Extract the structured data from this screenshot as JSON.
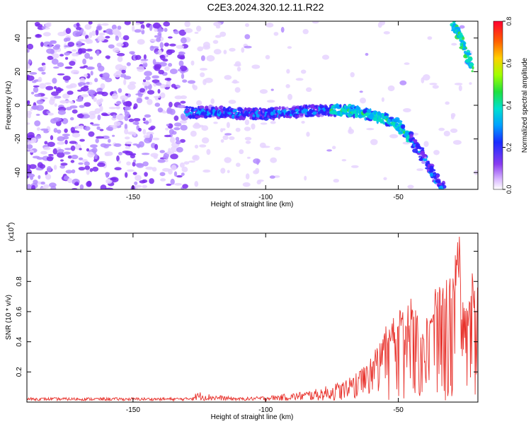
{
  "title": "C2E3.2024.320.12.11.R22",
  "chart_data": [
    {
      "type": "heatmap",
      "xlabel": "Height of straight line (km)",
      "ylabel": "Frequency (Hz)",
      "xlim": [
        -190,
        -20
      ],
      "ylim": [
        -50,
        50
      ],
      "xticks": [
        -150,
        -100,
        -50
      ],
      "xtick_labels": [
        "-150",
        "-100",
        "-50"
      ],
      "yticks": [
        -40,
        -20,
        0,
        20,
        40
      ],
      "ytick_labels": [
        "-40",
        "-20",
        "0",
        "20",
        "40"
      ],
      "colorbar": {
        "label": "Normalized spectral amplitude",
        "range": [
          0,
          0.8
        ],
        "ticks": [
          0,
          0.2,
          0.4,
          0.6,
          0.8
        ],
        "tick_labels": [
          "0.0",
          "0.2",
          "0.4",
          "0.6",
          "0.8"
        ]
      },
      "signal_track": {
        "x": [
          -130,
          -120,
          -110,
          -100,
          -90,
          -80,
          -70,
          -65,
          -60,
          -55,
          -50,
          -45,
          -40,
          -36,
          -33
        ],
        "y": [
          -4,
          -4,
          -5,
          -5,
          -4,
          -3,
          -3,
          -4,
          -6,
          -8,
          -12,
          -20,
          -32,
          -43,
          -50
        ]
      },
      "upper_track": {
        "x": [
          -30,
          -28,
          -26,
          -24,
          -22
        ],
        "y": [
          50,
          45,
          38,
          30,
          22
        ]
      },
      "noise_region": [
        -190,
        -130
      ],
      "grid": false
    },
    {
      "type": "line",
      "xlabel": "Height of straight line (km)",
      "ylabel": "SNR (10 * v/v)",
      "yscale_label": "(x10",
      "yscale_exponent": "4",
      "yscale_suffix": ")",
      "xlim": [
        -190,
        -20
      ],
      "ylim": [
        0,
        1.12
      ],
      "xticks": [
        -150,
        -100,
        -50
      ],
      "xtick_labels": [
        "-150",
        "-100",
        "-50"
      ],
      "yticks": [
        0.2,
        0.4,
        0.6,
        0.8,
        1
      ],
      "ytick_labels": [
        "0.2",
        "0.4",
        "0.6",
        "0.8",
        "1"
      ],
      "series": [
        {
          "color": "#e8332d",
          "envelope_x": [
            -190,
            -160,
            -140,
            -130,
            -125,
            -120,
            -110,
            -100,
            -90,
            -80,
            -75,
            -70,
            -65,
            -60,
            -55,
            -50,
            -45,
            -40,
            -35,
            -30,
            -27,
            -25,
            -22,
            -20
          ],
          "envelope_y": [
            0.03,
            0.03,
            0.03,
            0.03,
            0.07,
            0.05,
            0.03,
            0.04,
            0.06,
            0.09,
            0.12,
            0.15,
            0.2,
            0.3,
            0.5,
            0.6,
            0.7,
            0.55,
            0.8,
            0.9,
            1.12,
            0.65,
            0.9,
            0.85
          ],
          "baseline": 0.01
        }
      ],
      "grid": false
    }
  ],
  "colors": {
    "line": "#e8332d"
  }
}
